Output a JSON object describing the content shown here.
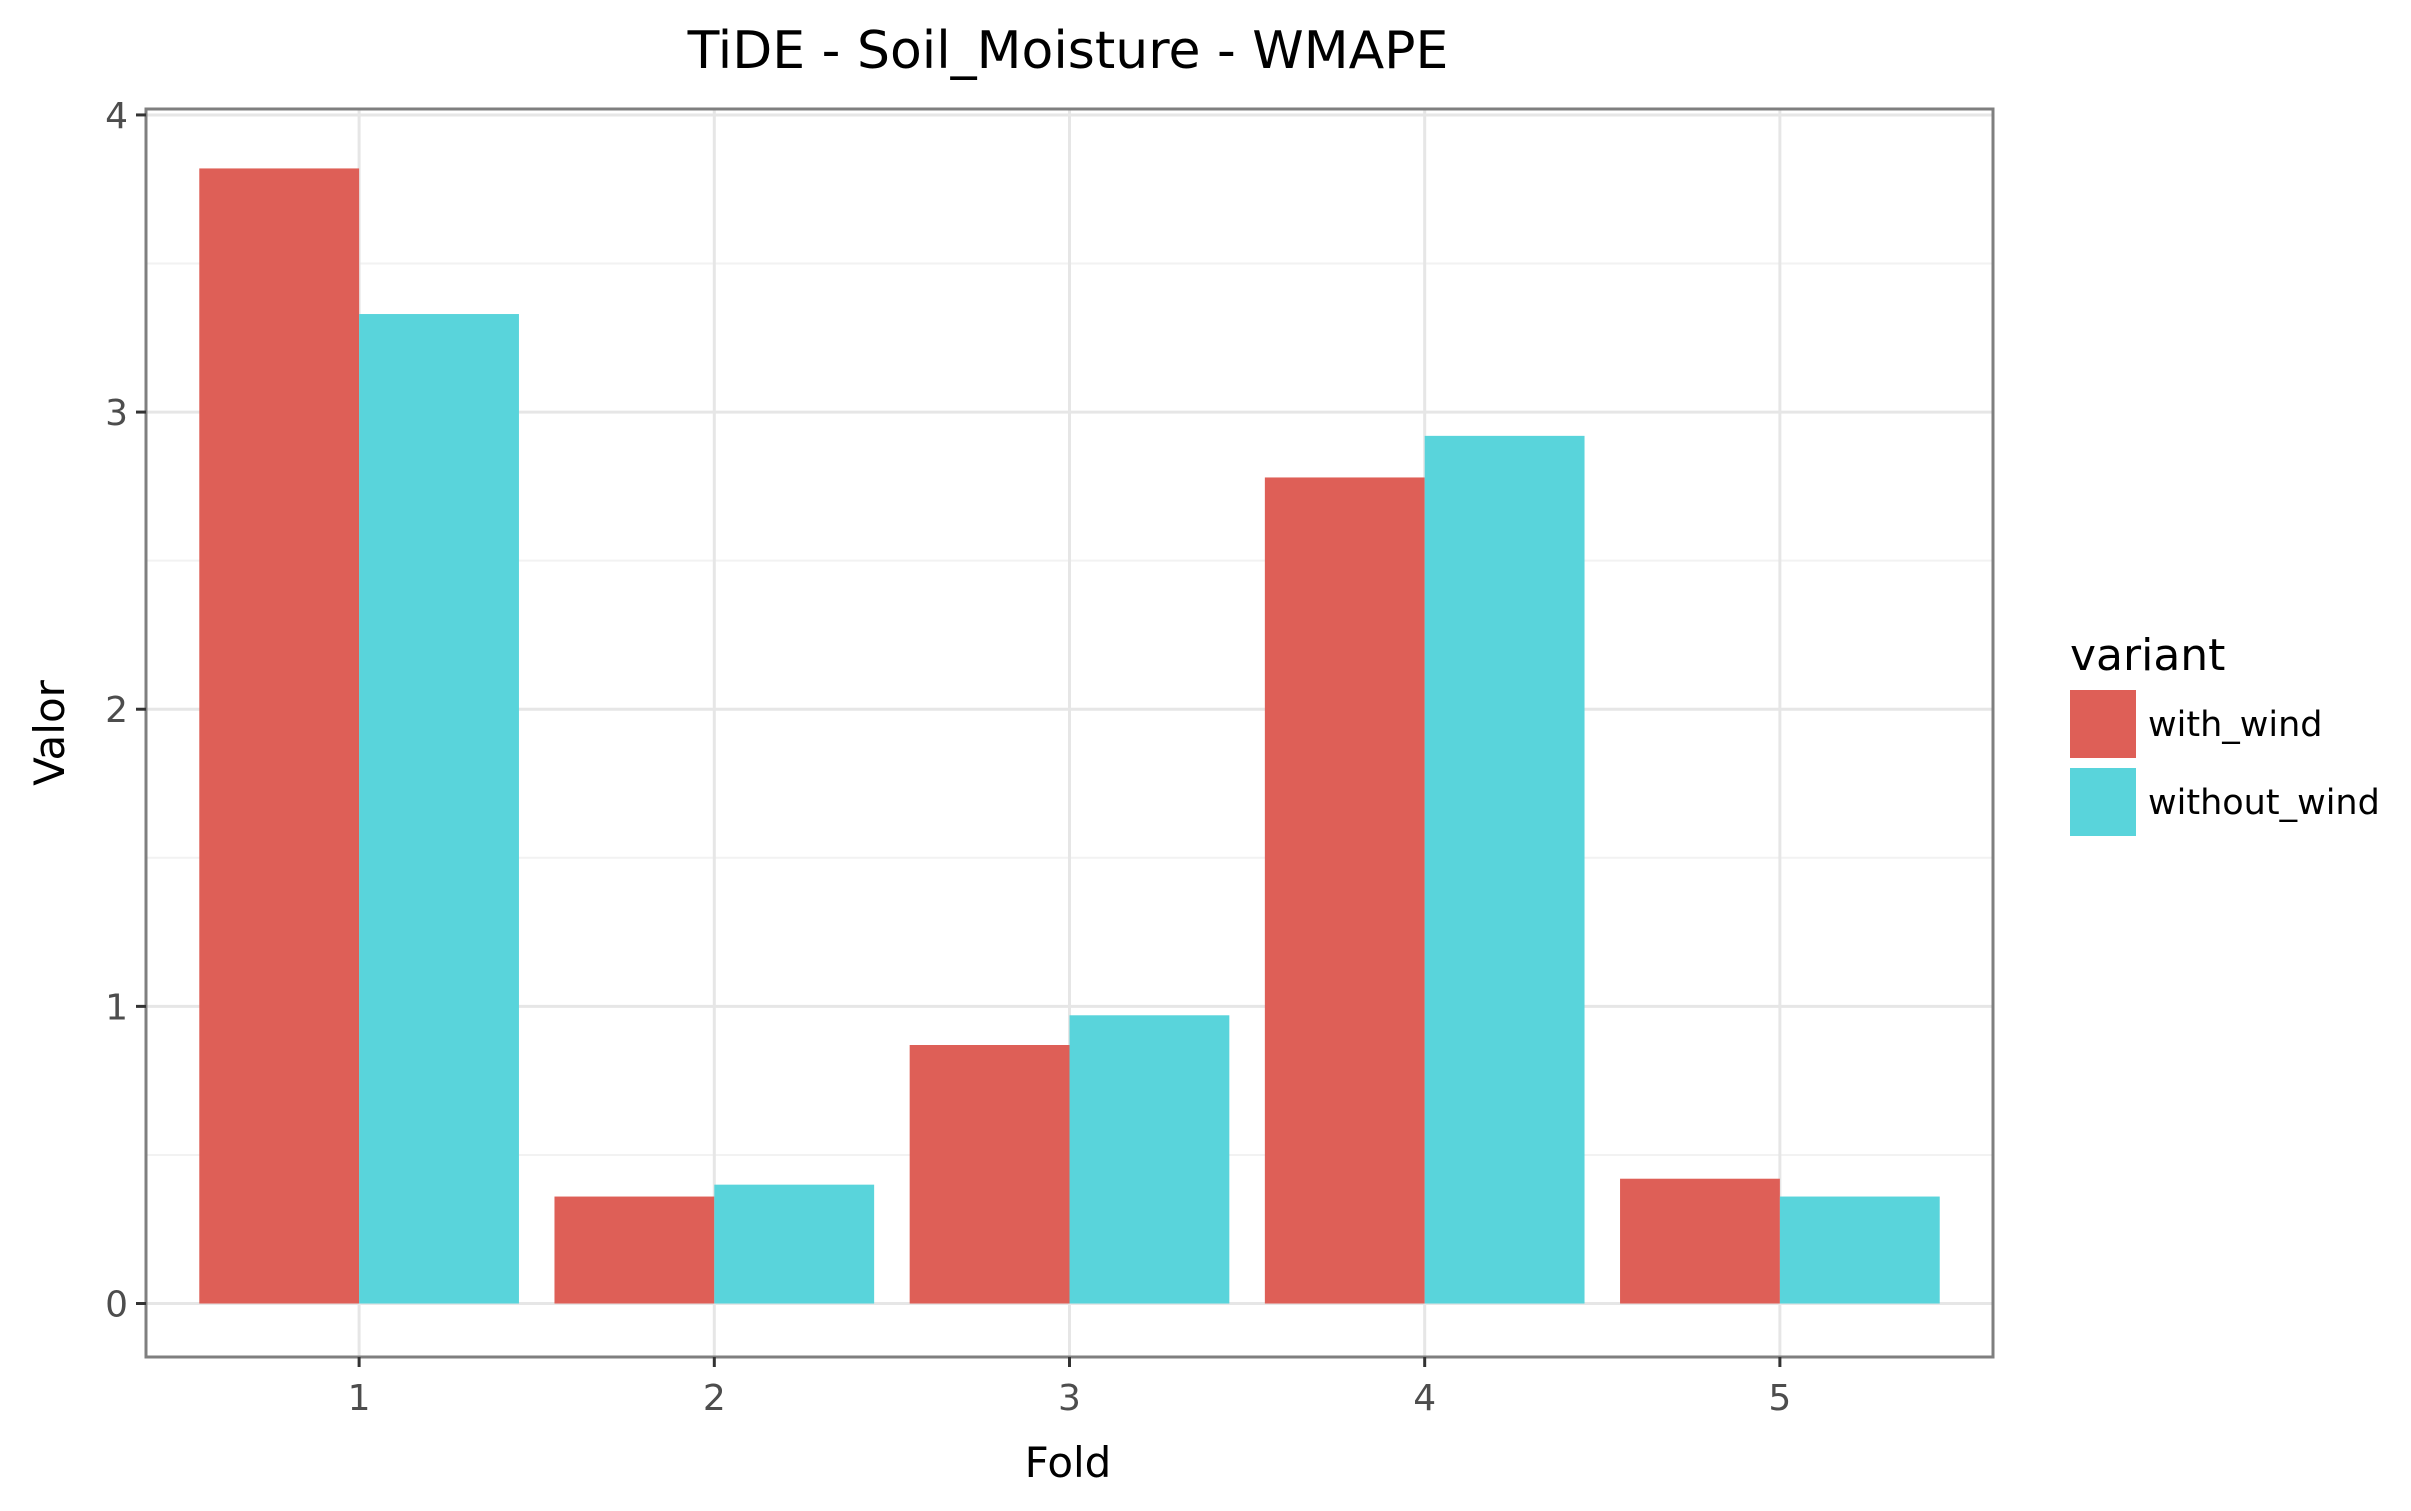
{
  "chart_data": {
    "type": "bar",
    "title": "TiDE - Soil_Moisture - WMAPE",
    "xlabel": "Fold",
    "ylabel": "Valor",
    "categories": [
      "1",
      "2",
      "3",
      "4",
      "5"
    ],
    "series": [
      {
        "name": "with_wind",
        "color": "#de5f57",
        "values": [
          3.82,
          0.36,
          0.87,
          2.78,
          0.42
        ]
      },
      {
        "name": "without_wind",
        "color": "#59d4db",
        "values": [
          3.33,
          0.4,
          0.97,
          2.92,
          0.36
        ]
      }
    ],
    "ylim": [
      -0.18,
      4.02
    ],
    "yticks": [
      0,
      1,
      2,
      3,
      4
    ],
    "grid": true,
    "legend": {
      "title": "variant",
      "position": "right"
    }
  }
}
